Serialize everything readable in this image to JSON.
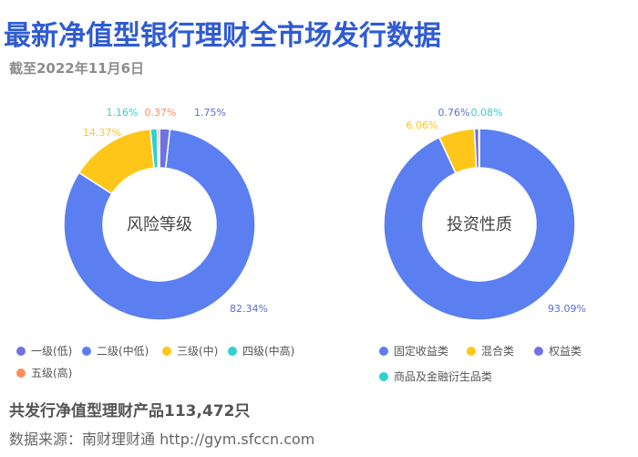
{
  "title": "最新净值型银行理财全市场发行数据",
  "subtitle": "截至2022年11月6日",
  "total_text": "共发行净值型理财产品113,472只",
  "source_text": "数据来源：南财理财通 http://gym.sfccn.com",
  "chart_data": [
    {
      "type": "pie",
      "variant": "donut",
      "center_label": "风险等级",
      "categories": [
        "一级(低)",
        "二级(中低)",
        "三级(中)",
        "四级(中高)",
        "五级(高)"
      ],
      "values": [
        1.75,
        82.34,
        14.37,
        1.16,
        0.37
      ],
      "value_labels": [
        "1.75%",
        "82.34%",
        "14.37%",
        "1.16%",
        "0.37%"
      ],
      "colors": [
        "#6f72e0",
        "#5b7ff0",
        "#ffc61a",
        "#2fd0d0",
        "#ff8c5a"
      ],
      "unit": "%"
    },
    {
      "type": "pie",
      "variant": "donut",
      "center_label": "投资性质",
      "categories": [
        "固定收益类",
        "混合类",
        "权益类",
        "商品及金融衍生品类"
      ],
      "values": [
        93.09,
        6.06,
        0.76,
        0.08
      ],
      "value_labels": [
        "93.09%",
        "6.06%",
        "0.76%",
        "0.08%"
      ],
      "colors": [
        "#5b7ff0",
        "#ffc61a",
        "#6f72e0",
        "#2fd0d0"
      ],
      "unit": "%"
    }
  ]
}
